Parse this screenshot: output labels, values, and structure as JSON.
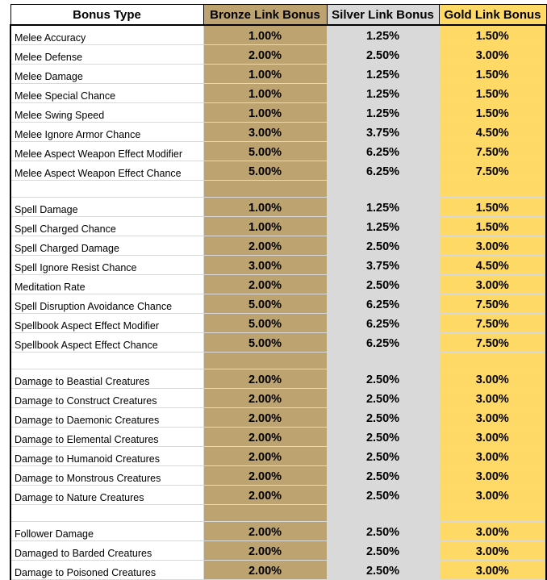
{
  "colors": {
    "bronze": "#bca36f",
    "silver": "#d9d9d9",
    "gold": "#fed966",
    "border_dark": "#000000",
    "gridline": "#d9d9d9"
  },
  "headers": [
    "Bonus Type",
    "Bronze Link Bonus",
    "Silver Link Bonus",
    "Gold Link Bonus"
  ],
  "groups": [
    {
      "rows": [
        {
          "type": "Melee Accuracy",
          "bronze": "1.00%",
          "silver": "1.25%",
          "gold": "1.50%"
        },
        {
          "type": "Melee Defense",
          "bronze": "2.00%",
          "silver": "2.50%",
          "gold": "3.00%"
        },
        {
          "type": "Melee Damage",
          "bronze": "1.00%",
          "silver": "1.25%",
          "gold": "1.50%"
        },
        {
          "type": "Melee Special Chance",
          "bronze": "1.00%",
          "silver": "1.25%",
          "gold": "1.50%"
        },
        {
          "type": "Melee Swing Speed",
          "bronze": "1.00%",
          "silver": "1.25%",
          "gold": "1.50%"
        },
        {
          "type": "Melee Ignore Armor Chance",
          "bronze": "3.00%",
          "silver": "3.75%",
          "gold": "4.50%"
        },
        {
          "type": "Melee Aspect Weapon Effect Modifier",
          "bronze": "5.00%",
          "silver": "6.25%",
          "gold": "7.50%"
        },
        {
          "type": "Melee Aspect Weapon Effect Chance",
          "bronze": "5.00%",
          "silver": "6.25%",
          "gold": "7.50%"
        }
      ]
    },
    {
      "rows": [
        {
          "type": "Spell Damage",
          "bronze": "1.00%",
          "silver": "1.25%",
          "gold": "1.50%"
        },
        {
          "type": "Spell Charged Chance",
          "bronze": "1.00%",
          "silver": "1.25%",
          "gold": "1.50%"
        },
        {
          "type": "Spell Charged Damage",
          "bronze": "2.00%",
          "silver": "2.50%",
          "gold": "3.00%"
        },
        {
          "type": "Spell Ignore Resist Chance",
          "bronze": "3.00%",
          "silver": "3.75%",
          "gold": "4.50%"
        },
        {
          "type": "Meditation Rate",
          "bronze": "2.00%",
          "silver": "2.50%",
          "gold": "3.00%"
        },
        {
          "type": "Spell Disruption Avoidance Chance",
          "bronze": "5.00%",
          "silver": "6.25%",
          "gold": "7.50%"
        },
        {
          "type": "Spellbook Aspect Effect Modifier",
          "bronze": "5.00%",
          "silver": "6.25%",
          "gold": "7.50%"
        },
        {
          "type": "Spellbook Aspect Effect Chance",
          "bronze": "5.00%",
          "silver": "6.25%",
          "gold": "7.50%"
        }
      ]
    },
    {
      "rows": [
        {
          "type": "Damage to Beastial Creatures",
          "bronze": "2.00%",
          "silver": "2.50%",
          "gold": "3.00%"
        },
        {
          "type": "Damage to Construct Creatures",
          "bronze": "2.00%",
          "silver": "2.50%",
          "gold": "3.00%"
        },
        {
          "type": "Damage to Daemonic Creatures",
          "bronze": "2.00%",
          "silver": "2.50%",
          "gold": "3.00%"
        },
        {
          "type": "Damage to Elemental Creatures",
          "bronze": "2.00%",
          "silver": "2.50%",
          "gold": "3.00%"
        },
        {
          "type": "Damage to Humanoid Creatures",
          "bronze": "2.00%",
          "silver": "2.50%",
          "gold": "3.00%"
        },
        {
          "type": "Damage to Monstrous Creatures",
          "bronze": "2.00%",
          "silver": "2.50%",
          "gold": "3.00%"
        },
        {
          "type": "Damage to Nature Creatures",
          "bronze": "2.00%",
          "silver": "2.50%",
          "gold": "3.00%"
        }
      ]
    },
    {
      "rows": [
        {
          "type": "Follower Damage",
          "bronze": "2.00%",
          "silver": "2.50%",
          "gold": "3.00%"
        },
        {
          "type": "Damaged to Barded Creatures",
          "bronze": "2.00%",
          "silver": "2.50%",
          "gold": "3.00%"
        },
        {
          "type": "Damage to Poisoned Creatures",
          "bronze": "2.00%",
          "silver": "2.50%",
          "gold": "3.00%"
        }
      ]
    }
  ]
}
